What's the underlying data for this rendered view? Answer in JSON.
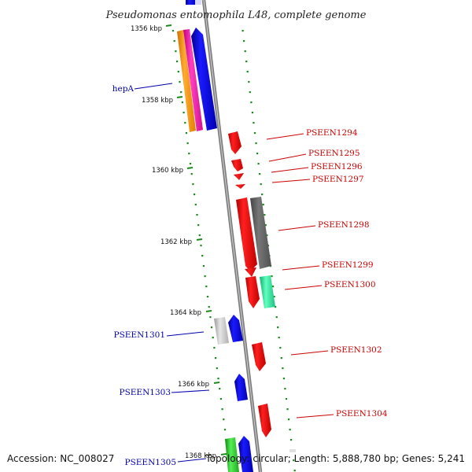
{
  "title": "Pseudomonas entomophila L48, complete genome",
  "footer": {
    "accession": "Accession: NC_008027",
    "summary": "Topology: circular; Length: 5,888,780 bp; Genes: 5,241"
  },
  "colors": {
    "backbone": "#8a8a8a",
    "dots": "#1a8a1a",
    "label_forward_strand": "#0000aa",
    "label_reverse_strand": "#cc0000"
  },
  "ticks": [
    "1356 kbp",
    "1358 kbp",
    "1360 kbp",
    "1362 kbp",
    "1364 kbp",
    "1366 kbp",
    "1368 kbp"
  ],
  "gene_labels_left": [
    "hepA",
    "PSEEN1301",
    "PSEEN1303",
    "PSEEN1305"
  ],
  "gene_labels_right": [
    "PSEEN1294",
    "PSEEN1295",
    "PSEEN1296",
    "PSEEN1297",
    "PSEEN1298",
    "PSEEN1299",
    "PSEEN1300",
    "PSEEN1302",
    "PSEEN1304"
  ],
  "feature_icons": [
    "arrow-up-icon",
    "arrow-down-icon"
  ]
}
